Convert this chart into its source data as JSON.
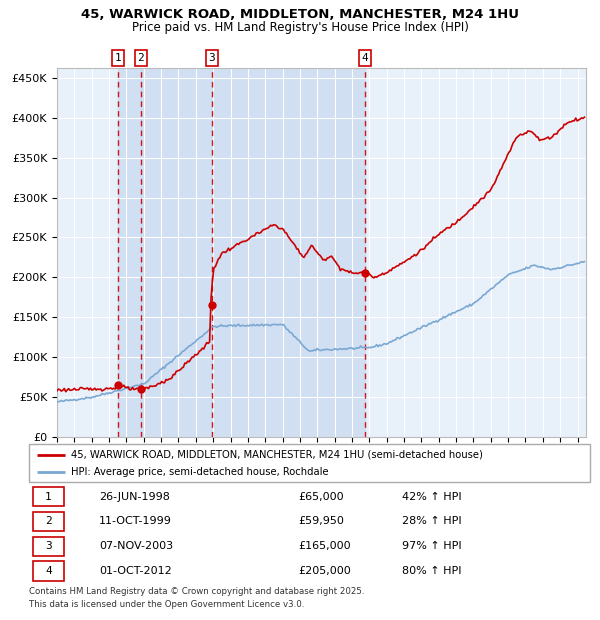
{
  "title_line1": "45, WARWICK ROAD, MIDDLETON, MANCHESTER, M24 1HU",
  "title_line2": "Price paid vs. HM Land Registry's House Price Index (HPI)",
  "legend_line1": "45, WARWICK ROAD, MIDDLETON, MANCHESTER, M24 1HU (semi-detached house)",
  "legend_line2": "HPI: Average price, semi-detached house, Rochdale",
  "footer_line1": "Contains HM Land Registry data © Crown copyright and database right 2025.",
  "footer_line2": "This data is licensed under the Open Government Licence v3.0.",
  "red_color": "#cc0000",
  "blue_color": "#7aa8d2",
  "chart_bg": "#e8f0fa",
  "sale_prices": [
    65000,
    59950,
    165000,
    205000
  ],
  "sale_labels": [
    "1",
    "2",
    "3",
    "4"
  ],
  "sale_table": [
    [
      "1",
      "26-JUN-1998",
      "£65,000",
      "42% ↑ HPI"
    ],
    [
      "2",
      "11-OCT-1999",
      "£59,950",
      "28% ↑ HPI"
    ],
    [
      "3",
      "07-NOV-2003",
      "£165,000",
      "97% ↑ HPI"
    ],
    [
      "4",
      "01-OCT-2012",
      "£205,000",
      "80% ↑ HPI"
    ]
  ],
  "ylim": [
    0,
    462000
  ],
  "xlim_start": 1995.0,
  "xlim_end": 2025.5
}
